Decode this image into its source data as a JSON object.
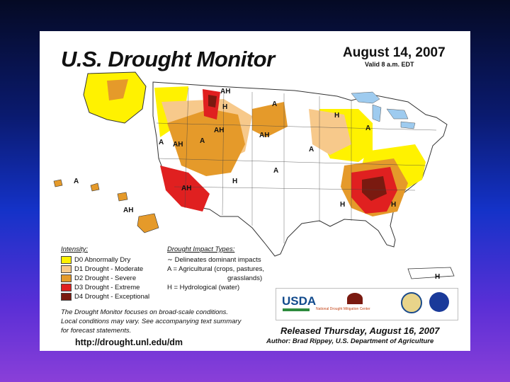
{
  "header": {
    "title": "U.S. Drought Monitor",
    "date": "August 14, 2007",
    "valid": "Valid 8 a.m. EDT"
  },
  "legend": {
    "intensity_title": "Intensity:",
    "levels": [
      {
        "label": "D0 Abnormally Dry",
        "color": "#fff200"
      },
      {
        "label": "D1 Drought - Moderate",
        "color": "#f7c98b"
      },
      {
        "label": "D2 Drought - Severe",
        "color": "#e59a2a"
      },
      {
        "label": "D3 Drought - Extreme",
        "color": "#e02020"
      },
      {
        "label": "D4 Drought - Exceptional",
        "color": "#7a1a10"
      }
    ],
    "impact_title": "Drought Impact Types:",
    "impacts": [
      "Delineates dominant impacts",
      "A = Agricultural (crops, pastures,",
      "grasslands)",
      "H = Hydrological (water)"
    ]
  },
  "notes": [
    "The Drought Monitor focuses on broad-scale conditions.",
    "Local conditions may vary. See accompanying text summary",
    "for forecast statements."
  ],
  "url": "http://drought.unl.edu/dm",
  "released": "Released Thursday, August 16, 2007",
  "author": "Author: Brad Rippey, U.S. Department of Agriculture",
  "logos": {
    "usda": "USDA",
    "ndmc": "National Drought Mitigation Center"
  },
  "map_labels": {
    "A": "A",
    "H": "H",
    "AH": "AH"
  }
}
